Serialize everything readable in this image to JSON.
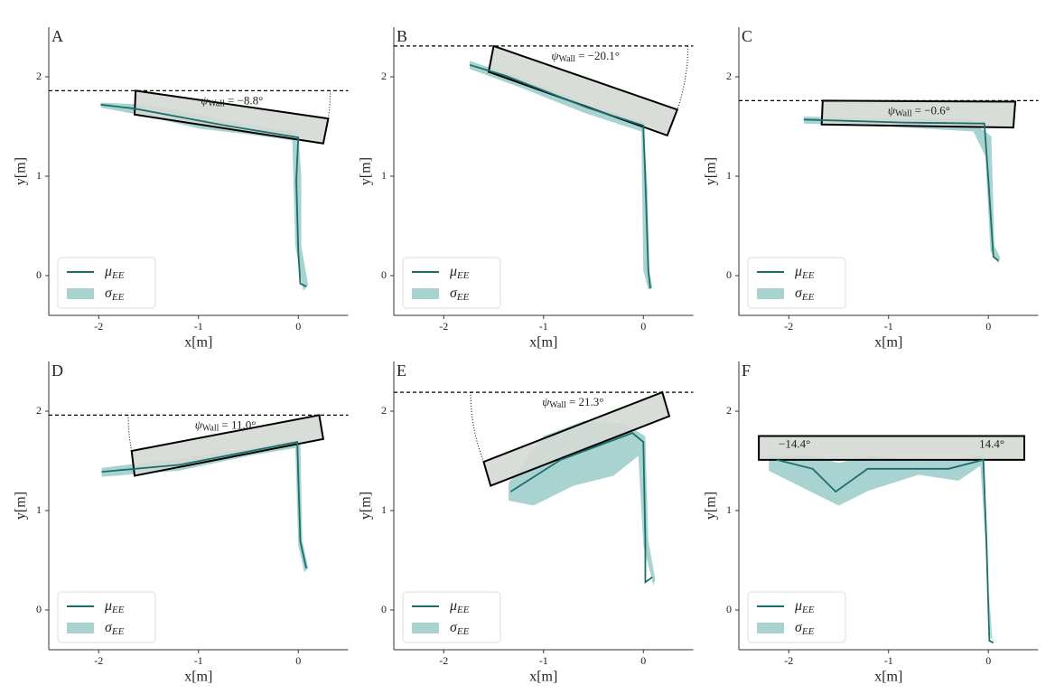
{
  "chart_data": [
    {
      "type": "line",
      "panel": "A",
      "x_label": "x[m]",
      "y_label": "y[m]",
      "xlim": [
        -2.5,
        0.5
      ],
      "ylim": [
        -0.4,
        2.5
      ],
      "xticks": [
        -2,
        -1,
        0
      ],
      "yticks": [
        0,
        1,
        2
      ],
      "legend": "lower left",
      "reference_y": 1.86,
      "wall": {
        "x": [
          -1.63,
          0.3,
          0.25,
          -1.64
        ],
        "y": [
          1.86,
          1.58,
          1.33,
          1.62
        ]
      },
      "annotation": {
        "symbol": "ψ",
        "subscript": "Wall",
        "text": "= −8.8°"
      },
      "series": [
        {
          "name": "μ",
          "subscript": "EE",
          "kind": "line",
          "color": "#1b6e6b",
          "x": [
            -1.98,
            -1.64,
            -0.73,
            0,
            -0.02,
            0,
            0.02,
            0.08
          ],
          "values": [
            1.72,
            1.68,
            1.51,
            1.39,
            0.96,
            0.24,
            -0.08,
            -0.11
          ]
        },
        {
          "name": "σ",
          "subscript": "EE",
          "kind": "area",
          "color": "#8cc4c0",
          "x": [
            -1.98,
            -1.5,
            -1.0,
            -0.5,
            0.0,
            0.03,
            0.03,
            0.1,
            0.05,
            -0.03,
            -0.05,
            -0.06,
            -0.5,
            -1.0,
            -1.5,
            -1.98
          ],
          "values": [
            1.74,
            1.72,
            1.62,
            1.52,
            1.45,
            1.0,
            0.3,
            -0.1,
            -0.15,
            0.3,
            1.0,
            1.36,
            1.42,
            1.48,
            1.6,
            1.69
          ]
        }
      ]
    },
    {
      "type": "line",
      "panel": "B",
      "x_label": "x[m]",
      "y_label": "y[m]",
      "xlim": [
        -2.5,
        0.5
      ],
      "ylim": [
        -0.4,
        2.5
      ],
      "xticks": [
        -2,
        -1,
        0
      ],
      "yticks": [
        0,
        1,
        2
      ],
      "legend": "lower left",
      "reference_y": 2.31,
      "wall": {
        "x": [
          -1.5,
          0.34,
          0.24,
          -1.55
        ],
        "y": [
          2.31,
          1.67,
          1.41,
          2.05
        ]
      },
      "annotation": {
        "symbol": "ψ",
        "subscript": "Wall",
        "text": "= −20.1°"
      },
      "series": [
        {
          "name": "μ",
          "subscript": "EE",
          "kind": "line",
          "color": "#1b6e6b",
          "x": [
            -1.74,
            -1.38,
            -0.56,
            0,
            0.02,
            0.05,
            0.07
          ],
          "values": [
            2.12,
            2.01,
            1.69,
            1.51,
            0.96,
            0.05,
            -0.13
          ]
        },
        {
          "name": "σ",
          "subscript": "EE",
          "kind": "area",
          "color": "#8cc4c0",
          "x": [
            -1.74,
            -1.2,
            -0.6,
            0.0,
            0.04,
            0.06,
            0.09,
            0.05,
            0.0,
            -0.02,
            -0.6,
            -1.2,
            -1.74
          ],
          "values": [
            2.16,
            1.98,
            1.74,
            1.55,
            0.9,
            0.05,
            -0.12,
            -0.14,
            0.05,
            1.45,
            1.64,
            1.88,
            2.08
          ]
        }
      ]
    },
    {
      "type": "line",
      "panel": "C",
      "x_label": "x[m]",
      "y_label": "y[m]",
      "xlim": [
        -2.5,
        0.5
      ],
      "ylim": [
        -0.4,
        2.5
      ],
      "xticks": [
        -2,
        -1,
        0
      ],
      "yticks": [
        0,
        1,
        2
      ],
      "legend": "lower left",
      "reference_y": 1.76,
      "wall": {
        "x": [
          -1.66,
          0.27,
          0.25,
          -1.67
        ],
        "y": [
          1.76,
          1.75,
          1.49,
          1.52
        ]
      },
      "annotation": {
        "symbol": "ψ",
        "subscript": "Wall",
        "text": "= −0.6°"
      },
      "series": [
        {
          "name": "μ",
          "subscript": "EE",
          "kind": "line",
          "color": "#1b6e6b",
          "x": [
            -1.85,
            -0.85,
            -0.04,
            0,
            0.05,
            0.1
          ],
          "values": [
            1.57,
            1.54,
            1.53,
            0.96,
            0.19,
            0.15
          ]
        },
        {
          "name": "σ",
          "subscript": "EE",
          "kind": "area",
          "color": "#8cc4c0",
          "x": [
            -1.85,
            -1.0,
            -0.2,
            0.03,
            0.06,
            0.12,
            0.1,
            0.02,
            -0.03,
            -0.15,
            -1.0,
            -1.85
          ],
          "values": [
            1.6,
            1.58,
            1.58,
            1.4,
            0.3,
            0.18,
            0.12,
            0.25,
            1.2,
            1.45,
            1.5,
            1.53
          ]
        }
      ]
    },
    {
      "type": "line",
      "panel": "D",
      "x_label": "x[m]",
      "y_label": "y[m]",
      "xlim": [
        -2.5,
        0.5
      ],
      "ylim": [
        -0.4,
        2.5
      ],
      "xticks": [
        -2,
        -1,
        0
      ],
      "yticks": [
        0,
        1,
        2
      ],
      "legend": "lower left",
      "reference_y": 1.96,
      "wall": {
        "x": [
          -1.67,
          0.21,
          0.25,
          -1.64
        ],
        "y": [
          1.6,
          1.96,
          1.72,
          1.35
        ]
      },
      "annotation": {
        "symbol": "ψ",
        "subscript": "Wall",
        "text": "= 11.0°"
      },
      "series": [
        {
          "name": "μ",
          "subscript": "EE",
          "kind": "line",
          "color": "#1b6e6b",
          "x": [
            -1.97,
            -1.19,
            -0.01,
            0.02,
            0.08
          ],
          "values": [
            1.39,
            1.46,
            1.69,
            0.69,
            0.42
          ]
        },
        {
          "name": "σ",
          "subscript": "EE",
          "kind": "area",
          "color": "#8cc4c0",
          "x": [
            -1.97,
            -1.2,
            -0.5,
            0.02,
            0.04,
            0.1,
            0.06,
            0.0,
            -0.03,
            -0.5,
            -1.2,
            -1.97
          ],
          "values": [
            1.43,
            1.52,
            1.62,
            1.72,
            0.7,
            0.42,
            0.38,
            0.65,
            1.63,
            1.55,
            1.4,
            1.34
          ]
        }
      ]
    },
    {
      "type": "line",
      "panel": "E",
      "x_label": "x[m]",
      "y_label": "y[m]",
      "xlim": [
        -2.5,
        0.5
      ],
      "ylim": [
        -0.4,
        2.5
      ],
      "xticks": [
        -2,
        -1,
        0
      ],
      "yticks": [
        0,
        1,
        2
      ],
      "legend": "lower left",
      "reference_y": 2.19,
      "wall": {
        "x": [
          -1.6,
          0.19,
          0.26,
          -1.53
        ],
        "y": [
          1.49,
          2.19,
          1.95,
          1.25
        ]
      },
      "annotation": {
        "symbol": "ψ",
        "subscript": "Wall",
        "text": "= 21.3°"
      },
      "series": [
        {
          "name": "μ",
          "subscript": "EE",
          "kind": "line",
          "color": "#1b6e6b",
          "x": [
            -1.33,
            -0.83,
            -0.11,
            0,
            0.02,
            0.02,
            0.09
          ],
          "values": [
            1.19,
            1.51,
            1.78,
            1.69,
            0.69,
            0.28,
            0.33
          ]
        },
        {
          "name": "σ",
          "subscript": "EE",
          "kind": "area",
          "color": "#8cc4c0",
          "x": [
            -1.35,
            -1.0,
            -0.6,
            -0.2,
            0.02,
            0.05,
            0.12,
            0.1,
            0.0,
            -0.05,
            -0.3,
            -0.7,
            -1.1,
            -1.35
          ],
          "values": [
            1.28,
            1.75,
            1.9,
            1.88,
            1.75,
            0.7,
            0.3,
            0.25,
            0.65,
            1.55,
            1.35,
            1.25,
            1.05,
            1.1
          ]
        }
      ]
    },
    {
      "type": "line",
      "panel": "F",
      "x_label": "x[m]",
      "y_label": "y[m]",
      "xlim": [
        -2.5,
        0.5
      ],
      "ylim": [
        -0.4,
        2.5
      ],
      "xticks": [
        -2,
        -1,
        0
      ],
      "yticks": [
        0,
        1,
        2
      ],
      "legend": "lower left",
      "wall": {
        "x": [
          -2.3,
          0.36,
          0.36,
          -2.3
        ],
        "y": [
          1.75,
          1.75,
          1.51,
          1.51
        ]
      },
      "annotations": [
        "−14.4°",
        "14.4°"
      ],
      "series": [
        {
          "name": "μ",
          "subscript": "EE",
          "kind": "line",
          "color": "#1b6e6b",
          "x": [
            -2.12,
            -1.76,
            -1.53,
            -1.21,
            -0.4,
            -0.05,
            -0.02,
            0.01,
            0.05
          ],
          "values": [
            1.51,
            1.42,
            1.19,
            1.42,
            1.42,
            1.51,
            0.69,
            -0.31,
            -0.33
          ]
        },
        {
          "name": "σ",
          "subscript": "EE",
          "kind": "area",
          "color": "#8cc4c0",
          "x": [
            -2.2,
            -1.8,
            -1.5,
            -1.2,
            -0.7,
            -0.3,
            -0.05,
            -0.01,
            0.02,
            0.1,
            0.04,
            -0.03,
            -0.08,
            -0.3,
            -0.7,
            -1.2,
            -1.5,
            -1.8,
            -2.2
          ],
          "values": [
            1.56,
            1.56,
            1.48,
            1.55,
            1.5,
            1.52,
            1.56,
            0.7,
            -0.28,
            -0.33,
            -0.3,
            0.7,
            1.45,
            1.3,
            1.36,
            1.2,
            1.05,
            1.2,
            1.4
          ]
        }
      ]
    }
  ]
}
